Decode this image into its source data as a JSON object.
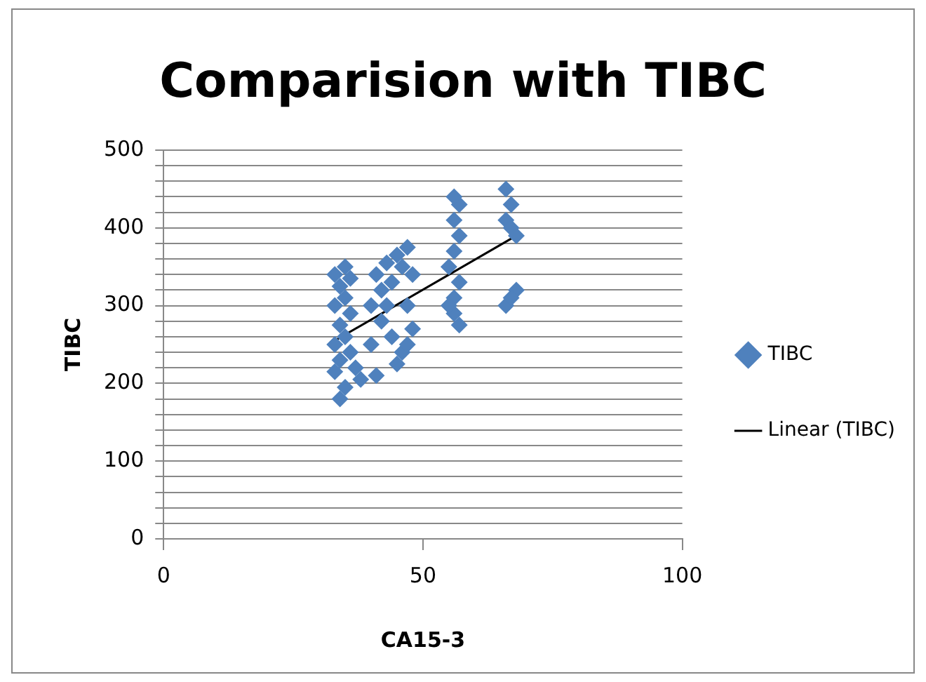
{
  "chart_data": {
    "type": "scatter",
    "title": "Comparision with TIBC",
    "xlabel": "CA15-3",
    "ylabel": "TIBC",
    "xlim": [
      0,
      100
    ],
    "xticks": [
      0,
      50,
      100
    ],
    "ylim": [
      0,
      500
    ],
    "yticks": [
      0,
      {
        "value": 20,
        "label": null
      },
      {
        "value": 40,
        "label": null
      },
      {
        "value": 60,
        "label": null
      },
      {
        "value": 80,
        "label": null
      },
      100,
      {
        "value": 120,
        "label": null
      },
      {
        "value": 140,
        "label": null
      },
      {
        "value": 160,
        "label": null
      },
      {
        "value": 180,
        "label": null
      },
      200,
      {
        "value": 220,
        "label": null
      },
      {
        "value": 240,
        "label": null
      },
      {
        "value": 260,
        "label": null
      },
      {
        "value": 280,
        "label": null
      },
      300,
      {
        "value": 320,
        "label": null
      },
      {
        "value": 340,
        "label": null
      },
      {
        "value": 360,
        "label": null
      },
      {
        "value": 380,
        "label": null
      },
      400,
      {
        "value": 420,
        "label": null
      },
      {
        "value": 440,
        "label": null
      },
      {
        "value": 460,
        "label": null
      },
      {
        "value": 480,
        "label": null
      },
      500
    ],
    "grid": "y",
    "legend": "right",
    "marker": "diamond",
    "series": [
      {
        "name": "TIBC",
        "color": "#4f81bd",
        "x": [
          34,
          35,
          33,
          34,
          36,
          33,
          35,
          34,
          36,
          33,
          35,
          34,
          36,
          33,
          35,
          37,
          38,
          40,
          42,
          41,
          43,
          45,
          47,
          46,
          44,
          42,
          44,
          46,
          45,
          47,
          43,
          41,
          40,
          48,
          47,
          48,
          56,
          56,
          57,
          55,
          56,
          57,
          56,
          57,
          56,
          57,
          55,
          66,
          67,
          66,
          67,
          68,
          66,
          68,
          67
        ],
        "values": [
          180,
          195,
          215,
          230,
          240,
          250,
          260,
          275,
          290,
          300,
          310,
          325,
          335,
          340,
          350,
          220,
          205,
          300,
          320,
          340,
          355,
          365,
          375,
          350,
          330,
          280,
          260,
          240,
          225,
          250,
          300,
          210,
          250,
          340,
          300,
          270,
          290,
          310,
          330,
          350,
          370,
          390,
          410,
          430,
          440,
          275,
          300,
          450,
          430,
          410,
          400,
          390,
          300,
          320,
          310
        ]
      },
      {
        "name": "Linear (TIBC)",
        "type": "line",
        "color": "#000000",
        "marker": "none",
        "x": [
          33,
          68
        ],
        "values": [
          255,
          390
        ]
      }
    ]
  }
}
